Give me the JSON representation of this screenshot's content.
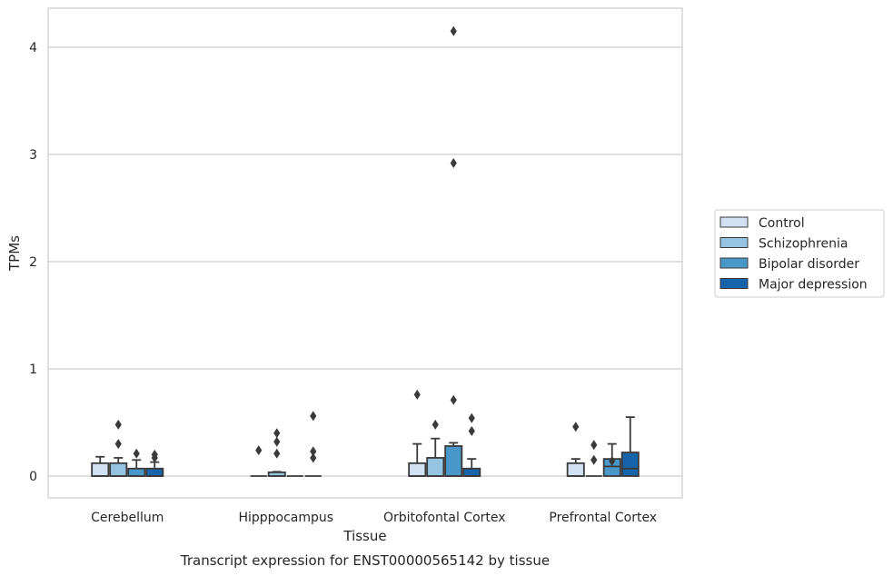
{
  "caption": "Transcript expression for ENST00000565142 by tissue",
  "chart_data": {
    "type": "box",
    "xlabel": "Tissue",
    "ylabel": "TPMs",
    "ylim": [
      -0.2,
      4.35
    ],
    "yticks": [
      0,
      1,
      2,
      3,
      4
    ],
    "grid": "horizontal",
    "legend_placement": "right",
    "categories": [
      "Cerebellum",
      "Hipppocampus",
      "Orbitofontal Cortex",
      "Prefrontal Cortex"
    ],
    "series": [
      {
        "name": "Control",
        "color": "#d0e1f2",
        "boxes": [
          {
            "q1": 0.0,
            "median": 0.0,
            "q3": 0.12,
            "whisker_low": 0.0,
            "whisker_high": 0.18,
            "outliers": []
          },
          {
            "q1": 0.0,
            "median": 0.0,
            "q3": 0.0,
            "whisker_low": 0.0,
            "whisker_high": 0.0,
            "outliers": [
              0.24
            ]
          },
          {
            "q1": 0.0,
            "median": 0.0,
            "q3": 0.12,
            "whisker_low": 0.0,
            "whisker_high": 0.3,
            "outliers": [
              0.76
            ]
          },
          {
            "q1": 0.0,
            "median": 0.0,
            "q3": 0.12,
            "whisker_low": 0.0,
            "whisker_high": 0.16,
            "outliers": [
              0.46
            ]
          }
        ]
      },
      {
        "name": "Schizophrenia",
        "color": "#94c4df",
        "boxes": [
          {
            "q1": 0.0,
            "median": 0.0,
            "q3": 0.12,
            "whisker_low": 0.0,
            "whisker_high": 0.17,
            "outliers": [
              0.3,
              0.48
            ]
          },
          {
            "q1": 0.0,
            "median": 0.0,
            "q3": 0.035,
            "whisker_low": 0.0,
            "whisker_high": 0.04,
            "outliers": [
              0.21,
              0.32,
              0.4
            ]
          },
          {
            "q1": 0.0,
            "median": 0.0,
            "q3": 0.17,
            "whisker_low": 0.0,
            "whisker_high": 0.35,
            "outliers": [
              0.48
            ]
          },
          {
            "q1": 0.0,
            "median": 0.0,
            "q3": 0.0,
            "whisker_low": 0.0,
            "whisker_high": 0.0,
            "outliers": [
              0.15,
              0.29
            ]
          }
        ]
      },
      {
        "name": "Bipolar disorder",
        "color": "#4a98c9",
        "boxes": [
          {
            "q1": 0.0,
            "median": 0.0,
            "q3": 0.07,
            "whisker_low": 0.0,
            "whisker_high": 0.15,
            "outliers": [
              0.21
            ]
          },
          {
            "q1": 0.0,
            "median": 0.0,
            "q3": 0.0,
            "whisker_low": 0.0,
            "whisker_high": 0.0,
            "outliers": []
          },
          {
            "q1": 0.0,
            "median": 0.0,
            "q3": 0.28,
            "whisker_low": 0.0,
            "whisker_high": 0.31,
            "outliers": [
              0.71,
              2.92,
              4.15
            ]
          },
          {
            "q1": 0.0,
            "median": 0.09,
            "q3": 0.16,
            "whisker_low": 0.0,
            "whisker_high": 0.3,
            "outliers": [
              0.14
            ]
          }
        ]
      },
      {
        "name": "Major depression",
        "color": "#1764ab",
        "boxes": [
          {
            "q1": 0.0,
            "median": 0.0,
            "q3": 0.07,
            "whisker_low": 0.0,
            "whisker_high": 0.13,
            "outliers": [
              0.17,
              0.2
            ]
          },
          {
            "q1": 0.0,
            "median": 0.0,
            "q3": 0.0,
            "whisker_low": 0.0,
            "whisker_high": 0.0,
            "outliers": [
              0.17,
              0.23,
              0.56
            ]
          },
          {
            "q1": 0.0,
            "median": 0.0,
            "q3": 0.07,
            "whisker_low": 0.0,
            "whisker_high": 0.16,
            "outliers": [
              0.42,
              0.54
            ]
          },
          {
            "q1": 0.0,
            "median": 0.07,
            "q3": 0.22,
            "whisker_low": 0.0,
            "whisker_high": 0.55,
            "outliers": []
          }
        ]
      }
    ]
  }
}
